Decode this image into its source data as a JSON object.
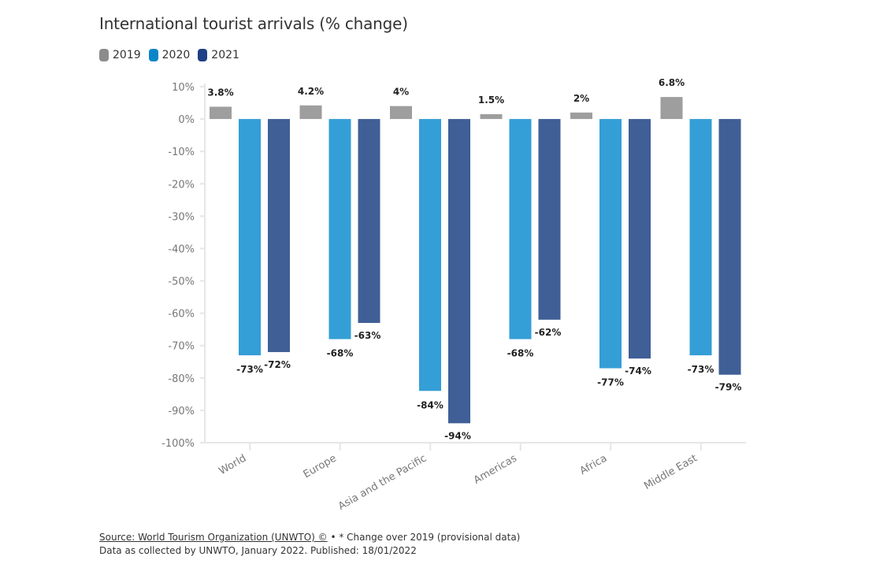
{
  "chart_data": {
    "type": "bar",
    "title": "International tourist arrivals (% change)",
    "xlabel": "",
    "ylabel": "",
    "ylim": [
      -100,
      10
    ],
    "yticks": [
      "10%",
      "0%",
      "-10%",
      "-20%",
      "-30%",
      "-40%",
      "-50%",
      "-60%",
      "-70%",
      "-80%",
      "-90%",
      "-100%"
    ],
    "ytick_values": [
      10,
      0,
      -10,
      -20,
      -30,
      -40,
      -50,
      -60,
      -70,
      -80,
      -90,
      -100
    ],
    "grid": false,
    "legend_position": "top-left",
    "categories": [
      "World",
      "Europe",
      "Asia and the Pacific",
      "Americas",
      "Africa",
      "Middle East"
    ],
    "series": [
      {
        "name": "2019",
        "color": "#9e9e9e",
        "values": [
          3.8,
          4.2,
          4,
          1.5,
          2,
          6.8
        ],
        "labels": [
          "3.8%",
          "4.2%",
          "4%",
          "1.5%",
          "2%",
          "6.8%"
        ]
      },
      {
        "name": "2020",
        "color": "#349ed6",
        "values": [
          -73,
          -68,
          -84,
          -68,
          -77,
          -73
        ],
        "labels": [
          "-73%",
          "-68%",
          "-84%",
          "-68%",
          "-77%",
          "-73%"
        ]
      },
      {
        "name": "2021",
        "color": "#3f5f96",
        "values": [
          -72,
          -63,
          -94,
          -62,
          -74,
          -79
        ],
        "labels": [
          "-72%",
          "-63%",
          "-94%",
          "-62%",
          "-74%",
          "-79%"
        ]
      }
    ]
  },
  "legend": {
    "items": [
      {
        "label": "2019",
        "color": "#8c8c8c"
      },
      {
        "label": "2020",
        "color": "#0a86c8"
      },
      {
        "label": "2021",
        "color": "#1f3f86"
      }
    ]
  },
  "footer": {
    "source_link": "Source: World Tourism Organization (UNWTO) ©",
    "note": " • * Change over 2019 (provisional data)",
    "line2": "Data as collected by UNWTO, January 2022. Published: 18/01/2022"
  }
}
